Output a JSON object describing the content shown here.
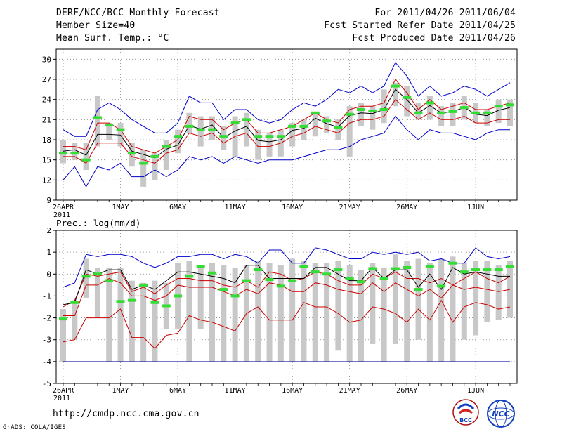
{
  "header": {
    "title": "DERF/NCC/BCC Monthly Forecast",
    "member_size": "Member Size=40",
    "variable": "Mean Surf. Temp.: °C",
    "forecast_period": "For 2011/04/26-2011/06/04",
    "started_refer_date": "Fcst Started Refer Date 2011/04/25",
    "produced_date": "Fcst Produced Date 2011/04/26"
  },
  "footer": {
    "url": "http://cmdp.ncc.cma.gov.cn",
    "credit": "GrADS: COLA/IGES",
    "logo_bcc_text": "BCC",
    "logo_ncc_text": "NCC"
  },
  "colors": {
    "envelope": "#0000cc",
    "spread": "#cc0000",
    "mean": "#000000",
    "box": "#c8c8c8",
    "member": "#33dd33",
    "grid": "#888888"
  },
  "chart_data": [
    {
      "type": "box",
      "title": "Mean Surf. Temp.: °C",
      "ylabel": "°C",
      "ylim": [
        9,
        31.5
      ],
      "yticks": [
        9,
        12,
        15,
        18,
        21,
        24,
        27,
        30
      ],
      "xtick_labels": [
        {
          "day": 0,
          "label": "26APR",
          "sub": "2011"
        },
        {
          "day": 5,
          "label": "1MAY",
          "sub": ""
        },
        {
          "day": 10,
          "label": "6MAY",
          "sub": ""
        },
        {
          "day": 15,
          "label": "11MAY",
          "sub": ""
        },
        {
          "day": 20,
          "label": "16MAY",
          "sub": ""
        },
        {
          "day": 25,
          "label": "21MAY",
          "sub": ""
        },
        {
          "day": 30,
          "label": "26MAY",
          "sub": ""
        },
        {
          "day": 36,
          "label": "1JUN",
          "sub": ""
        }
      ],
      "grid": true,
      "series": [
        {
          "name": "max",
          "color": "#0000cc",
          "values": [
            19.5,
            18.5,
            18.5,
            22.5,
            23.5,
            22.5,
            21,
            20,
            19,
            19,
            20.5,
            24.5,
            23.5,
            23.5,
            21,
            22.5,
            22.5,
            21,
            20.5,
            21,
            22.5,
            23.5,
            23,
            24,
            25.5,
            25,
            26,
            25,
            26,
            29.5,
            27.5,
            24.5,
            26,
            24.5,
            25,
            26,
            25.5,
            24.5,
            25.5,
            26.5
          ]
        },
        {
          "name": "upper",
          "color": "#cc0000",
          "values": [
            17,
            17,
            16.5,
            20.5,
            20.5,
            19.5,
            17,
            16.5,
            16,
            17,
            18,
            21.5,
            21,
            21,
            19.5,
            20.5,
            21,
            19,
            19,
            19.5,
            20,
            21,
            22,
            21,
            20.5,
            22.5,
            23,
            23,
            23.5,
            27,
            25,
            22.5,
            24,
            22.5,
            23,
            23.5,
            22.5,
            22.5,
            23,
            23.5
          ]
        },
        {
          "name": "mean",
          "color": "#000000",
          "values": [
            16.3,
            16.5,
            15.7,
            18.8,
            18.8,
            18.7,
            16.3,
            15.8,
            15.3,
            16.6,
            17.2,
            20.1,
            19.6,
            20.2,
            18.3,
            19.3,
            20,
            17.9,
            17.7,
            18,
            19.4,
            19.7,
            21.2,
            20.4,
            19.9,
            21.6,
            22,
            21.9,
            22.5,
            25.5,
            24,
            22,
            23.1,
            22,
            22.2,
            22.8,
            21.8,
            21.6,
            22.4,
            22.8
          ]
        },
        {
          "name": "lower",
          "color": "#cc0000",
          "values": [
            15.5,
            15.5,
            14.5,
            17.5,
            17.5,
            17.5,
            15.5,
            15,
            14.5,
            16,
            16.5,
            19,
            18.5,
            19,
            17.5,
            18.5,
            19,
            17,
            17,
            17.5,
            18.5,
            19,
            20,
            19.5,
            19,
            20.5,
            21,
            21,
            21.5,
            24,
            22.5,
            21,
            22,
            21,
            21,
            21.5,
            20.5,
            20.5,
            21,
            21
          ]
        },
        {
          "name": "min",
          "color": "#0000cc",
          "values": [
            12,
            14,
            11,
            14,
            13.5,
            14.5,
            12.5,
            12.5,
            13.5,
            12.5,
            13.5,
            15.5,
            15,
            15.5,
            14.5,
            15.5,
            15,
            14.5,
            15,
            15,
            15,
            15.5,
            16,
            16.5,
            16.5,
            17,
            18,
            18.5,
            19,
            21.5,
            19.5,
            18,
            19.5,
            19,
            19,
            18.5,
            18,
            19,
            19.5,
            19.5
          ]
        }
      ],
      "box_low": [
        14.5,
        15,
        13.5,
        17,
        18,
        17,
        14,
        11,
        12,
        13.5,
        16,
        19,
        17,
        18,
        16.5,
        15.5,
        17,
        15,
        15.5,
        15.5,
        17,
        18,
        18.5,
        19,
        18,
        15.5,
        20,
        19.5,
        20.5,
        23,
        21.5,
        21,
        21,
        20,
        20,
        21,
        20.5,
        20,
        20.5,
        20
      ],
      "box_high": [
        18,
        17.5,
        17.5,
        24.5,
        20.5,
        20.5,
        17.5,
        16.5,
        16,
        18,
        19.5,
        22,
        21.5,
        21.5,
        20,
        21.5,
        22,
        19.5,
        19,
        19.5,
        20.5,
        21,
        22,
        21.5,
        21,
        23,
        23.5,
        23,
        25.5,
        26.5,
        26,
        23.5,
        24.5,
        23,
        23.5,
        24.5,
        23.5,
        22.5,
        24,
        24
      ],
      "member": [
        16,
        16,
        15,
        21.3,
        20.2,
        19.5,
        16,
        14.5,
        15.5,
        17,
        18.5,
        20,
        19.5,
        19.5,
        18.5,
        20.5,
        21,
        18.5,
        18.5,
        18.5,
        20,
        20,
        22,
        20.8,
        19.8,
        21.8,
        22.5,
        22.3,
        22.5,
        26,
        24.3,
        22,
        23.5,
        22,
        22.2,
        22.8,
        22,
        22,
        23,
        23.2
      ]
    },
    {
      "type": "box",
      "title": "Prec.: log(mm/d)",
      "ylabel": "log(mm/d)",
      "ylim": [
        -5,
        2
      ],
      "yticks": [
        -5,
        -4,
        -3,
        -2,
        -1,
        0,
        1,
        2
      ],
      "xtick_labels": [
        {
          "day": 0,
          "label": "26APR",
          "sub": "2011"
        },
        {
          "day": 5,
          "label": "1MAY",
          "sub": ""
        },
        {
          "day": 10,
          "label": "6MAY",
          "sub": ""
        },
        {
          "day": 15,
          "label": "11MAY",
          "sub": ""
        },
        {
          "day": 20,
          "label": "16MAY",
          "sub": ""
        },
        {
          "day": 25,
          "label": "21MAY",
          "sub": ""
        },
        {
          "day": 30,
          "label": "26MAY",
          "sub": ""
        },
        {
          "day": 36,
          "label": "1JUN",
          "sub": ""
        }
      ],
      "grid": true,
      "baseline": -4,
      "series": [
        {
          "name": "max",
          "color": "#0000cc",
          "values": [
            -0.6,
            -0.4,
            0.9,
            0.8,
            0.9,
            0.9,
            0.8,
            0.5,
            0.3,
            0.5,
            0.8,
            0.8,
            0.9,
            0.9,
            0.7,
            0.9,
            0.8,
            0.5,
            1.1,
            1.1,
            0.5,
            0.5,
            1.2,
            1.1,
            0.9,
            0.7,
            0.7,
            1.0,
            0.9,
            1.0,
            0.9,
            1.0,
            0.6,
            0.7,
            0.5,
            0.5,
            1.2,
            0.8,
            0.7,
            0.8
          ]
        },
        {
          "name": "upper",
          "color": "#cc0000",
          "values": [
            -1.5,
            -1.2,
            0.0,
            -0.1,
            0.0,
            0.1,
            -0.8,
            -0.6,
            -0.9,
            -0.5,
            -0.2,
            -0.2,
            -0.3,
            -0.3,
            -0.5,
            -0.6,
            -0.3,
            -0.6,
            0.1,
            0.0,
            -0.3,
            -0.2,
            0.1,
            0.0,
            -0.3,
            -0.5,
            -0.5,
            0.0,
            -0.2,
            0.1,
            -0.2,
            -0.2,
            -0.4,
            -0.2,
            -0.5,
            -0.2,
            0.1,
            -0.2,
            -0.4,
            -0.1
          ]
        },
        {
          "name": "mean",
          "color": "#000000",
          "values": [
            -1.4,
            -1.3,
            0.2,
            0.0,
            0.2,
            0.2,
            -0.7,
            -0.5,
            -0.7,
            -0.3,
            0.1,
            0.1,
            0.0,
            -0.1,
            -0.2,
            -0.4,
            0.4,
            0.4,
            -0.2,
            -0.2,
            -0.2,
            -0.2,
            0.3,
            0.3,
            0.0,
            -0.3,
            -0.3,
            0.3,
            -0.2,
            0.2,
            0.2,
            -0.6,
            0.0,
            -0.7,
            0.3,
            0.0,
            0.1,
            0.0,
            -0.1,
            -0.1
          ]
        },
        {
          "name": "lower",
          "color": "#cc0000",
          "values": [
            -1.9,
            -1.9,
            -0.5,
            -0.5,
            -0.2,
            -0.4,
            -1.0,
            -1.0,
            -1.2,
            -1.0,
            -0.5,
            -0.6,
            -0.6,
            -0.6,
            -0.8,
            -1.0,
            -0.7,
            -0.9,
            -0.4,
            -0.5,
            -0.8,
            -0.8,
            -0.4,
            -0.5,
            -0.7,
            -0.8,
            -0.9,
            -0.4,
            -0.8,
            -0.4,
            -0.7,
            -1.0,
            -0.7,
            -1.1,
            -0.5,
            -0.7,
            -0.6,
            -0.7,
            -0.8,
            -0.7
          ]
        },
        {
          "name": "min",
          "color": "#cc0000",
          "values": [
            -3.1,
            -3.0,
            -2.0,
            -2.0,
            -2.0,
            -1.6,
            -2.9,
            -2.9,
            -3.4,
            -2.8,
            -2.7,
            -1.9,
            -2.1,
            -2.2,
            -2.4,
            -2.6,
            -1.8,
            -1.5,
            -2.1,
            -2.1,
            -2.1,
            -1.3,
            -1.5,
            -1.5,
            -1.8,
            -2.2,
            -2.1,
            -1.5,
            -1.6,
            -1.8,
            -2.2,
            -1.6,
            -2.1,
            -1.2,
            -2.2,
            -1.5,
            -1.3,
            -1.4,
            -1.6,
            -1.5
          ]
        }
      ],
      "box_low": [
        -4,
        -3,
        -1.1,
        -2,
        -4,
        -4,
        -4,
        -4,
        -4,
        -2.5,
        -2.5,
        -4,
        -2.5,
        -4,
        -4,
        -4,
        -4,
        -4,
        -4,
        -4,
        -4,
        -4,
        -4,
        -4,
        -3.5,
        -4,
        -4,
        -3.2,
        -4,
        -3.2,
        -4,
        -3,
        -4,
        -4,
        -4,
        -3,
        -2.8,
        -2.2,
        -2.1,
        -2
      ],
      "box_high": [
        -1.6,
        -1.2,
        0.7,
        0.3,
        0.3,
        0.3,
        -0.3,
        -0.4,
        -0.3,
        -0.4,
        0.5,
        0.6,
        0.3,
        0.5,
        0.4,
        0.3,
        0.4,
        0.6,
        0.5,
        0.4,
        0.7,
        0.6,
        0.5,
        0.5,
        0.6,
        0.4,
        0.2,
        0.5,
        0.3,
        0.9,
        0.6,
        0.7,
        0.5,
        0.7,
        0.8,
        0.5,
        0.6,
        0.6,
        0.4,
        0.6
      ],
      "member": [
        -2.05,
        -1.3,
        -0.1,
        0.0,
        -0.3,
        -1.25,
        -1.2,
        -0.5,
        -1.3,
        -1.45,
        -1.0,
        -0.1,
        0.35,
        0.05,
        -0.7,
        -1.0,
        -0.3,
        0.2,
        -0.25,
        -0.55,
        -0.3,
        0.35,
        0.1,
        0.0,
        0.2,
        -0.2,
        -0.35,
        0.25,
        -0.2,
        0.25,
        0.3,
        -0.7,
        0.35,
        -0.55,
        0.5,
        0.1,
        0.2,
        0.2,
        0.2,
        0.35
      ]
    }
  ]
}
